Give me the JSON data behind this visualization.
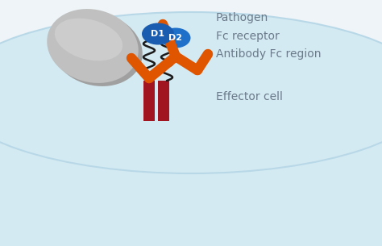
{
  "bg_color": "#eef4f7",
  "cell_color": "#d4eaf2",
  "cell_edge_color": "#b8d8e8",
  "pathogen_color": "#c0c0c0",
  "pathogen_highlight": "#d8d8d8",
  "pathogen_shadow": "#a0a0a0",
  "antibody_color": "#e05500",
  "fc_d1_color": "#1a5cb0",
  "fc_d2_color": "#1e70c8",
  "tm_color": "#a01520",
  "wiggly_color": "#1a1a1a",
  "label_color": "#6a7a8a",
  "label_pathogen": "Pathogen",
  "label_antibody": "Antibody Fc region",
  "label_fc": "Fc receptor",
  "label_effector": "Effector cell",
  "label_d1": "D1",
  "label_d2": "D2",
  "label_fontsize": 10
}
